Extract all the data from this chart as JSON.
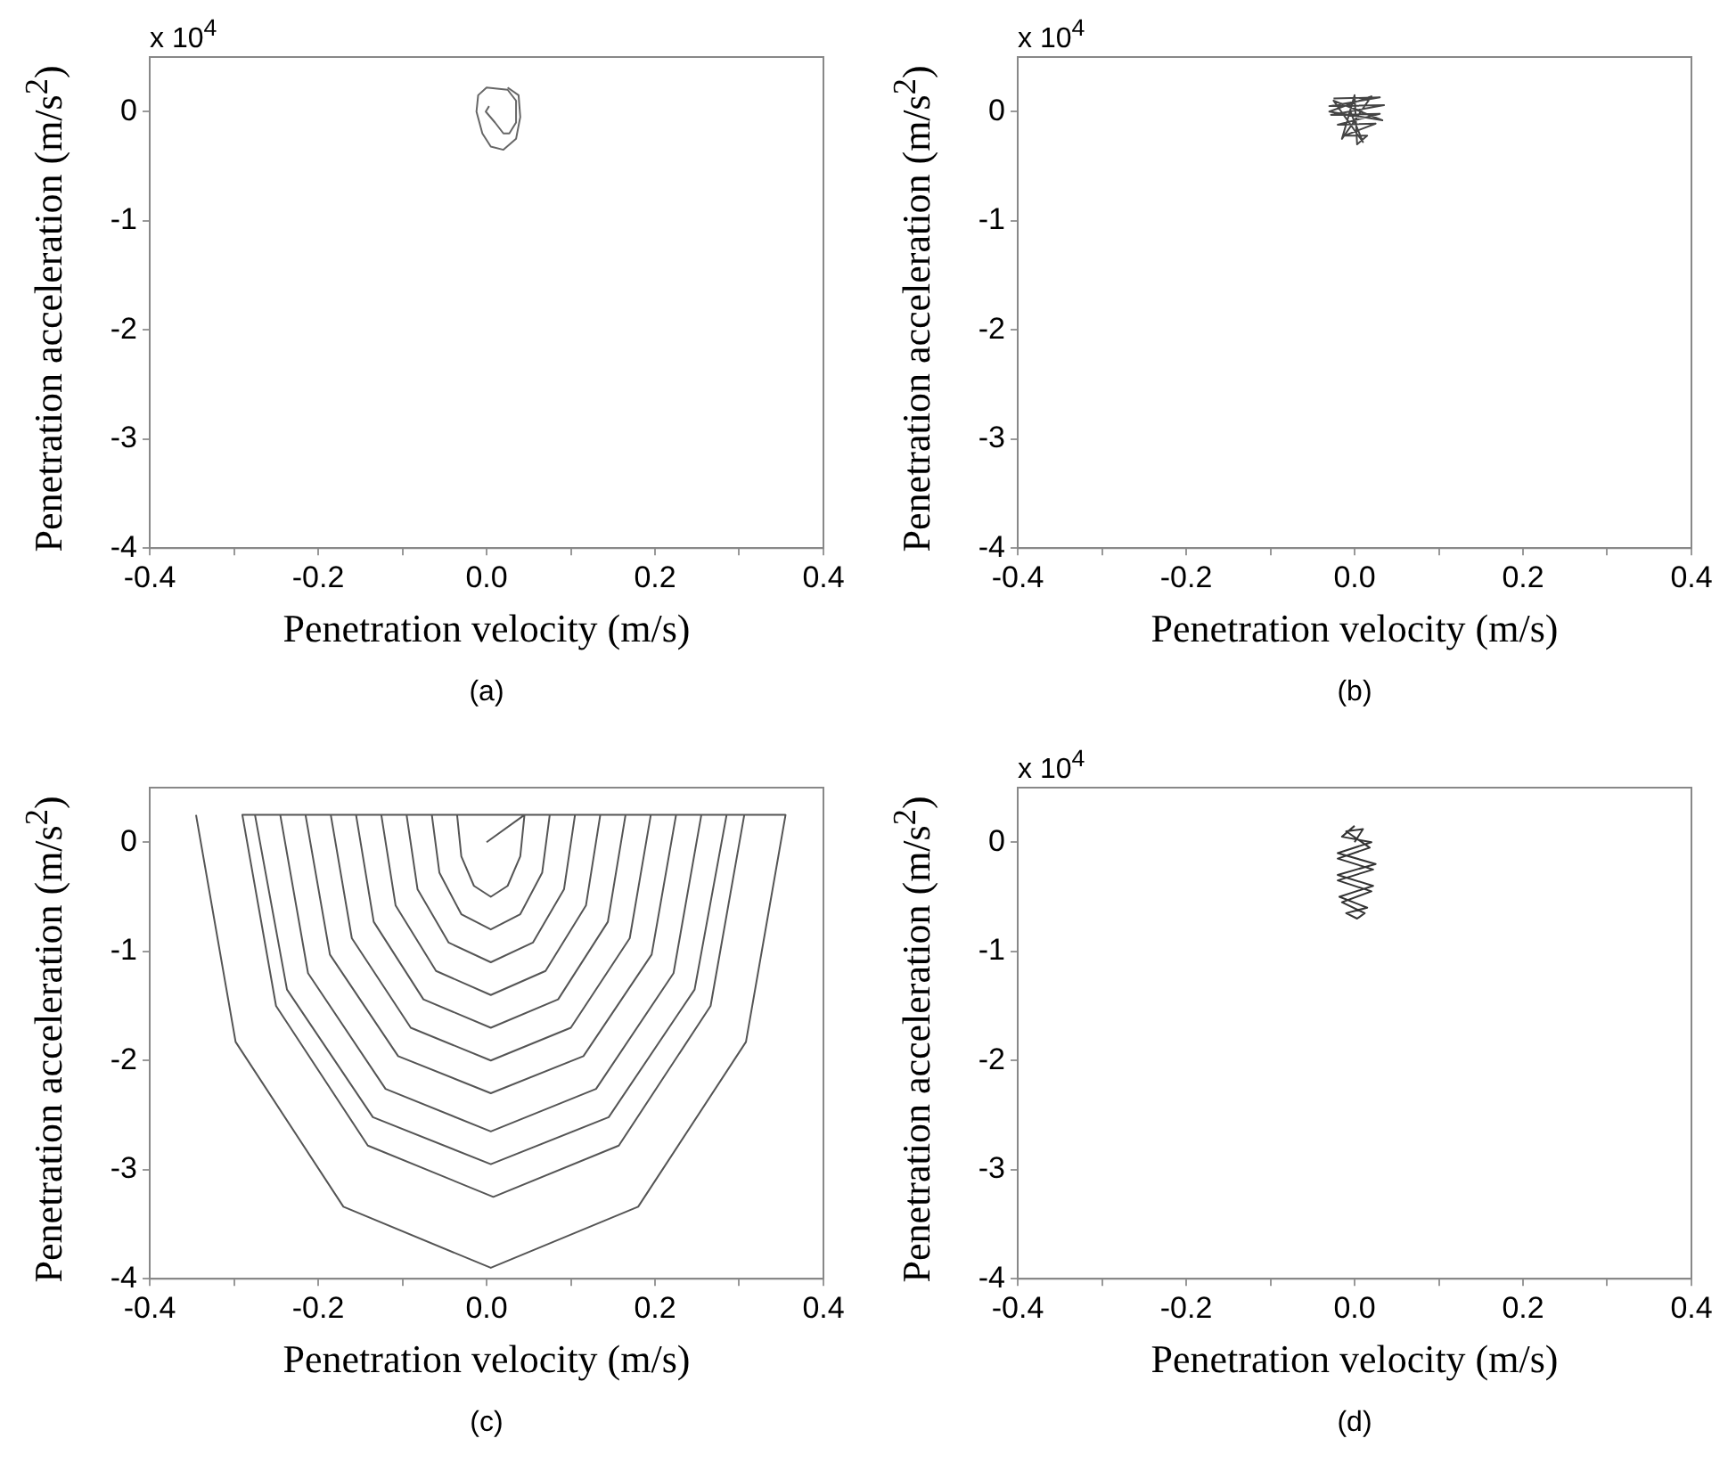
{
  "chart_data": [
    {
      "type": "line",
      "xlabel": "Penetration velocity (m/s)",
      "ylabel": "Penetration acceleration (m/s$^{2}$)",
      "annotations": [
        "x 10$^{4}$",
        "(a)"
      ],
      "color": "#666666",
      "marker": "none",
      "x": [
        0.003,
        -0.001,
        0.01,
        0.02,
        0.027,
        0.035,
        0.035,
        0.025,
        0.0,
        -0.01,
        -0.012,
        -0.005,
        0.005,
        0.02,
        0.035,
        0.04,
        0.038,
        0.025
      ],
      "values": [
        0.05,
        0,
        -0.1,
        -0.2,
        -0.2,
        -0.1,
        0.1,
        0.2,
        0.22,
        0.15,
        0,
        -0.2,
        -0.32,
        -0.35,
        -0.25,
        -0.05,
        0.15,
        0.22
      ],
      "xlim": [
        -0.4,
        0.4
      ],
      "ylim": [
        -4,
        0.5
      ],
      "xticks": [
        -0.4,
        {
          "value": -0.3,
          "label": null
        },
        -0.2,
        {
          "value": -0.1,
          "label": null
        },
        {
          "value": 0,
          "label": "0.0"
        },
        {
          "value": 0.1,
          "label": null
        },
        0.2,
        {
          "value": 0.3,
          "label": null
        },
        0.4
      ],
      "yticks": [
        -4,
        -3,
        -2,
        -1,
        0
      ]
    },
    {
      "type": "line",
      "xlabel": "Penetration velocity (m/s)",
      "ylabel": "Penetration acceleration (m/s$^{2}$)",
      "annotations": [
        "x 10$^{4}$",
        "(b)"
      ],
      "color": "#444444",
      "marker": "none",
      "x": [
        -0.025,
        0.03,
        -0.03,
        0.035,
        -0.028,
        0.03,
        -0.02,
        0.025,
        -0.012,
        0.015,
        0.003,
        0.0,
        -0.015,
        0.02,
        -0.03,
        0.033,
        -0.025,
        0.01,
        -0.005
      ],
      "values": [
        0.12,
        0.13,
        0.05,
        0.06,
        -0.03,
        -0.02,
        -0.12,
        -0.11,
        -0.22,
        -0.22,
        -0.3,
        0.15,
        -0.25,
        0.14,
        0,
        -0.08,
        0.1,
        -0.28,
        0
      ],
      "xlim": [
        -0.4,
        0.4
      ],
      "ylim": [
        -4,
        0.5
      ],
      "xticks": [
        -0.4,
        {
          "value": -0.3,
          "label": null
        },
        -0.2,
        {
          "value": -0.1,
          "label": null
        },
        {
          "value": 0,
          "label": "0.0"
        },
        {
          "value": 0.1,
          "label": null
        },
        0.2,
        {
          "value": 0.3,
          "label": null
        },
        0.4
      ],
      "yticks": [
        -4,
        -3,
        -2,
        -1,
        0
      ]
    },
    {
      "type": "line",
      "xlabel": "Penetration velocity (m/s)",
      "ylabel": "Penetration acceleration (m/s$^{2}$)",
      "annotations": [
        "(c)"
      ],
      "color": "#555555",
      "marker": "none",
      "x": [
        -0.345,
        -0.298,
        -0.17,
        0.005,
        0.18,
        0.308,
        0.355,
        -0.29,
        -0.25,
        -0.141,
        0.008,
        0.157,
        0.266,
        0.306,
        -0.275,
        -0.237,
        -0.135,
        0.005,
        0.145,
        0.247,
        0.285,
        -0.245,
        -0.212,
        -0.12,
        0.005,
        0.13,
        0.222,
        0.255,
        -0.215,
        -0.186,
        -0.105,
        0.005,
        0.115,
        0.196,
        0.225,
        -0.185,
        -0.16,
        -0.09,
        0.005,
        0.1,
        0.17,
        0.195,
        -0.155,
        -0.134,
        -0.075,
        0.005,
        0.085,
        0.144,
        0.165,
        -0.125,
        -0.108,
        -0.06,
        0.005,
        0.07,
        0.118,
        0.135,
        -0.095,
        -0.082,
        -0.045,
        0.005,
        0.055,
        0.092,
        0.105,
        -0.065,
        -0.056,
        -0.03,
        0.005,
        0.04,
        0.066,
        0.075,
        -0.035,
        -0.03,
        -0.015,
        0.005,
        0.025,
        0.04,
        0.045,
        0.0
      ],
      "values": [
        0.25,
        -1.83,
        -3.34,
        -3.9,
        -3.34,
        -1.83,
        0.25,
        0.25,
        -1.5,
        -2.78,
        -3.25,
        -2.78,
        -1.5,
        0.25,
        0.25,
        -1.35,
        -2.52,
        -2.95,
        -2.52,
        -1.35,
        0.25,
        0.25,
        -1.2,
        -2.26,
        -2.65,
        -2.26,
        -1.2,
        0.25,
        0.25,
        -1.03,
        -1.96,
        -2.3,
        -1.96,
        -1.03,
        0.25,
        0.25,
        -0.88,
        -1.7,
        -2.0,
        -1.7,
        -0.88,
        0.25,
        0.25,
        -0.73,
        -1.44,
        -1.7,
        -1.44,
        -0.73,
        0.25,
        0.25,
        -0.58,
        -1.18,
        -1.4,
        -1.18,
        -0.58,
        0.25,
        0.25,
        -0.43,
        -0.92,
        -1.1,
        -0.92,
        -0.43,
        0.25,
        0.25,
        -0.28,
        -0.66,
        -0.8,
        -0.66,
        -0.28,
        0.25,
        0.25,
        -0.13,
        -0.4,
        -0.5,
        -0.4,
        -0.13,
        0.25,
        0
      ],
      "xlim": [
        -0.4,
        0.4
      ],
      "ylim": [
        -4,
        0.5
      ],
      "xticks": [
        -0.4,
        {
          "value": -0.3,
          "label": null
        },
        -0.2,
        {
          "value": -0.1,
          "label": null
        },
        {
          "value": 0,
          "label": "0.0"
        },
        {
          "value": 0.1,
          "label": null
        },
        0.2,
        {
          "value": 0.3,
          "label": null
        },
        0.4
      ],
      "yticks": [
        -4,
        -3,
        -2,
        -1,
        0
      ]
    },
    {
      "type": "line",
      "xlabel": "Penetration velocity (m/s)",
      "ylabel": "Penetration acceleration (m/s$^{2}$)",
      "annotations": [
        "x 10$^{4}$",
        "(d)"
      ],
      "color": "#333333",
      "marker": "none",
      "x": [
        0.0,
        -0.015,
        0.02,
        -0.02,
        0.025,
        -0.02,
        0.022,
        -0.018,
        0.015,
        -0.01,
        0.003,
        0.012,
        -0.015,
        0.02,
        -0.02,
        0.022,
        -0.02,
        0.018,
        -0.01,
        0.01,
        0.0
      ],
      "values": [
        0.15,
        0.05,
        0,
        -0.1,
        -0.2,
        -0.3,
        -0.4,
        -0.5,
        -0.6,
        -0.65,
        -0.7,
        -0.65,
        -0.55,
        -0.45,
        -0.35,
        -0.25,
        -0.15,
        -0.05,
        0.1,
        0.12,
        0
      ],
      "xlim": [
        -0.4,
        0.4
      ],
      "ylim": [
        -4,
        0.5
      ],
      "xticks": [
        -0.4,
        {
          "value": -0.3,
          "label": null
        },
        -0.2,
        {
          "value": -0.1,
          "label": null
        },
        {
          "value": 0,
          "label": "0.0"
        },
        {
          "value": 0.1,
          "label": null
        },
        0.2,
        {
          "value": 0.3,
          "label": null
        },
        0.4
      ],
      "yticks": [
        -4,
        -3,
        -2,
        -1,
        0
      ]
    }
  ]
}
